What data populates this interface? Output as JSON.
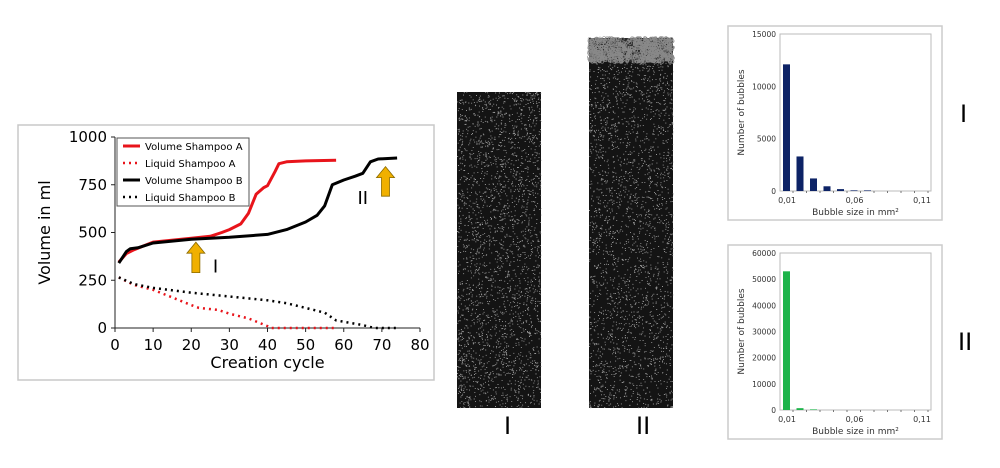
{
  "chart_data": [
    {
      "type": "line",
      "xlabel": "Creation cycle",
      "ylabel": "Volume in ml",
      "xlim": [
        0,
        80
      ],
      "ylim": [
        0,
        1000
      ],
      "xticks": [
        0,
        10,
        20,
        30,
        40,
        50,
        60,
        70,
        80
      ],
      "yticks": [
        0,
        250,
        500,
        750,
        1000
      ],
      "grid": false,
      "legend_position": "top-left",
      "series": [
        {
          "name": "Volume Shampoo A",
          "color": "#e8141b",
          "style": "solid",
          "x": [
            1,
            3,
            5,
            10,
            20,
            25,
            28,
            30,
            33,
            35,
            37,
            39,
            40,
            42,
            43,
            45,
            50,
            58
          ],
          "y": [
            345,
            390,
            410,
            450,
            470,
            480,
            500,
            515,
            545,
            600,
            700,
            735,
            745,
            820,
            860,
            870,
            875,
            878
          ]
        },
        {
          "name": "Liquid Shampoo A",
          "color": "#e8141b",
          "style": "dotted",
          "x": [
            1,
            5,
            10,
            15,
            20,
            22,
            27,
            30,
            35,
            40,
            41,
            58
          ],
          "y": [
            265,
            225,
            200,
            160,
            120,
            105,
            95,
            75,
            50,
            10,
            0,
            0
          ]
        },
        {
          "name": "Volume Shampoo B",
          "color": "#000000",
          "style": "solid",
          "x": [
            1,
            3,
            4,
            6,
            10,
            20,
            30,
            40,
            45,
            50,
            53,
            55,
            57,
            60,
            63,
            65,
            67,
            69,
            74
          ],
          "y": [
            340,
            400,
            415,
            420,
            445,
            465,
            475,
            490,
            515,
            555,
            590,
            640,
            750,
            775,
            795,
            810,
            870,
            885,
            890
          ]
        },
        {
          "name": "Liquid Shampoo B",
          "color": "#000000",
          "style": "dotted",
          "x": [
            1,
            5,
            10,
            20,
            30,
            40,
            45,
            50,
            55,
            58,
            65,
            68,
            74
          ],
          "y": [
            265,
            230,
            210,
            185,
            165,
            145,
            130,
            105,
            80,
            40,
            15,
            0,
            0
          ]
        }
      ],
      "annotations": [
        {
          "label": "I",
          "x": 22,
          "arrow_color": "#f0b000"
        },
        {
          "label": "II",
          "x": 72,
          "arrow_color": "#f0b000"
        }
      ]
    },
    {
      "type": "bar",
      "panel": "I",
      "xlabel": "Bubble size in mm²",
      "ylabel": "Number of bubbles",
      "xticks": [
        "0,01",
        "0,06",
        "0,11"
      ],
      "yticks": [
        0,
        5000,
        10000,
        15000
      ],
      "ylim": [
        0,
        15000
      ],
      "color": "#0d2366",
      "categories": [
        0.01,
        0.02,
        0.03,
        0.04,
        0.05,
        0.06,
        0.07
      ],
      "values": [
        12100,
        3300,
        1200,
        450,
        180,
        60,
        20
      ]
    },
    {
      "type": "bar",
      "panel": "II",
      "xlabel": "Bubble size in mm²",
      "ylabel": "Number of bubbles",
      "xticks": [
        "0,01",
        "0,06",
        "0,11"
      ],
      "yticks": [
        0,
        10000,
        20000,
        30000,
        40000,
        50000,
        60000
      ],
      "ylim": [
        0,
        60000
      ],
      "color": "#1db34a",
      "categories": [
        0.01,
        0.02,
        0.03
      ],
      "values": [
        53000,
        700,
        200
      ]
    }
  ],
  "foam_labels": [
    "I",
    "II"
  ],
  "panel_labels": [
    "I",
    "II"
  ]
}
